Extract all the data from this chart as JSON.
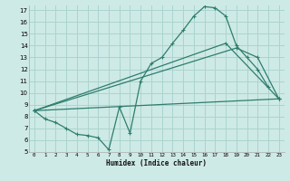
{
  "xlabel": "Humidex (Indice chaleur)",
  "bg_color": "#ceeae6",
  "grid_color": "#aad4cf",
  "line_color": "#2e7d6e",
  "xlim": [
    -0.5,
    23.5
  ],
  "ylim": [
    5,
    17.4
  ],
  "xticks": [
    0,
    1,
    2,
    3,
    4,
    5,
    6,
    7,
    8,
    9,
    10,
    11,
    12,
    13,
    14,
    15,
    16,
    17,
    18,
    19,
    20,
    21,
    22,
    23
  ],
  "yticks": [
    5,
    6,
    7,
    8,
    9,
    10,
    11,
    12,
    13,
    14,
    15,
    16,
    17
  ],
  "s1x": [
    0,
    1,
    2,
    3,
    4,
    5,
    6,
    7,
    8,
    9,
    10,
    11,
    12,
    13,
    14,
    15,
    16,
    17,
    18,
    19,
    20,
    21,
    22
  ],
  "s1y": [
    8.5,
    7.8,
    7.5,
    7.0,
    6.5,
    6.4,
    6.2,
    5.2,
    8.8,
    6.6,
    11.0,
    12.5,
    13.0,
    14.2,
    15.3,
    16.5,
    17.3,
    17.2,
    16.5,
    14.0,
    13.0,
    12.0,
    10.5
  ],
  "s2x": [
    0,
    23
  ],
  "s2y": [
    8.5,
    9.5
  ],
  "s3x": [
    0,
    19,
    21,
    23
  ],
  "s3y": [
    8.5,
    13.8,
    13.0,
    9.5
  ],
  "s4x": [
    0,
    18,
    23
  ],
  "s4y": [
    8.5,
    14.2,
    9.5
  ]
}
